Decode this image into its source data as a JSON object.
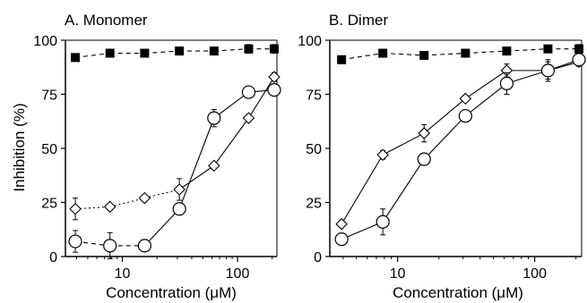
{
  "figure": {
    "ylabel": "Inhibition  (%)"
  },
  "chart_data": [
    {
      "type": "line",
      "title": "A. Monomer",
      "xlabel": "Concentration (μM)",
      "ylabel": "Inhibition  (%)",
      "xscale": "log",
      "xlim": [
        3.2,
        220
      ],
      "ylim": [
        0,
        100
      ],
      "xticks": [
        10,
        100
      ],
      "xtick_labels": [
        "10",
        "100"
      ],
      "yticks": [
        0,
        25,
        50,
        75,
        100
      ],
      "ytick_labels": [
        "0",
        "25",
        "50",
        "75",
        "100"
      ],
      "grid": false,
      "legend": "none",
      "series": [
        {
          "marker": "filled-square",
          "line": "dashed",
          "x": [
            3.9,
            7.8,
            15.6,
            31.25,
            62.5,
            125,
            250
          ],
          "y": [
            92,
            94,
            94,
            95,
            95,
            96,
            96
          ],
          "err": [
            1,
            1,
            1,
            1,
            1,
            2,
            2
          ]
        },
        {
          "marker": "open-diamond",
          "line": "dotted-then-solid",
          "x": [
            3.9,
            7.8,
            15.6,
            31.25,
            62.5,
            125,
            250
          ],
          "y": [
            22,
            23,
            27,
            31,
            42,
            64,
            83
          ],
          "err": [
            5,
            1,
            1,
            5,
            1,
            1,
            2
          ]
        },
        {
          "marker": "open-circle",
          "line": "dashed-then-solid",
          "x": [
            3.9,
            7.8,
            15.6,
            31.25,
            62.5,
            125,
            250
          ],
          "y": [
            7,
            5,
            5,
            22,
            64,
            76,
            77
          ],
          "err": [
            5,
            6,
            1,
            2,
            4,
            2,
            2
          ]
        }
      ]
    },
    {
      "type": "line",
      "title": "B. Dimer",
      "xlabel": "Concentration (μM)",
      "ylabel": "",
      "xscale": "log",
      "xlim": [
        3.2,
        220
      ],
      "ylim": [
        0,
        100
      ],
      "xticks": [
        10,
        100
      ],
      "xtick_labels": [
        "10",
        "100"
      ],
      "yticks": [
        0,
        25,
        50,
        75,
        100
      ],
      "ytick_labels": [
        "0",
        "25",
        "50",
        "75",
        "100"
      ],
      "grid": false,
      "legend": "none",
      "series": [
        {
          "marker": "filled-square",
          "line": "dashed",
          "x": [
            3.9,
            7.8,
            15.6,
            31.25,
            62.5,
            125,
            250
          ],
          "y": [
            91,
            94,
            93,
            94,
            95,
            96,
            96
          ],
          "err": [
            1,
            1,
            1,
            1,
            1,
            1,
            2
          ]
        },
        {
          "marker": "open-diamond",
          "line": "solid",
          "x": [
            3.9,
            7.8,
            15.6,
            31.25,
            62.5,
            125,
            250
          ],
          "y": [
            15,
            47,
            57,
            73,
            86,
            86,
            90
          ],
          "err": [
            1,
            2,
            4,
            1,
            3,
            5,
            2
          ]
        },
        {
          "marker": "open-circle",
          "line": "solid",
          "x": [
            3.9,
            7.8,
            15.6,
            31.25,
            62.5,
            125,
            250
          ],
          "y": [
            8,
            16,
            45,
            65,
            80,
            86,
            91
          ],
          "err": [
            2,
            6,
            1,
            1,
            5,
            4,
            2
          ]
        }
      ]
    }
  ]
}
